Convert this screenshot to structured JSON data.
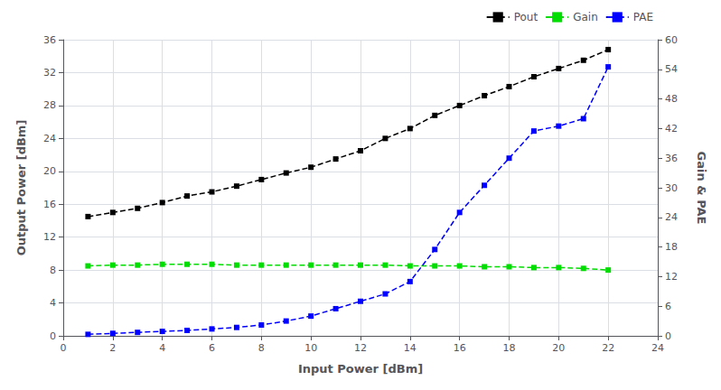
{
  "chart_data": {
    "type": "line",
    "xlabel": "Input Power [dBm]",
    "ylabel": "Output Power [dBm]",
    "y2label": "Gain & PAE",
    "x": [
      1,
      2,
      3,
      4,
      5,
      6,
      7,
      8,
      9,
      10,
      11,
      12,
      13,
      14,
      15,
      16,
      17,
      18,
      19,
      20,
      21,
      22
    ],
    "series": [
      {
        "name": "Pout",
        "color": "#000000",
        "axis": "y",
        "values": [
          14.5,
          15.0,
          15.5,
          16.2,
          17.0,
          17.5,
          18.2,
          19.0,
          19.8,
          20.5,
          21.5,
          22.5,
          24.0,
          25.2,
          26.8,
          28.0,
          29.2,
          30.3,
          31.5,
          32.5,
          33.5,
          34.8
        ]
      },
      {
        "name": "Gain",
        "color": "#00dd00",
        "axis": "y",
        "values": [
          8.5,
          8.6,
          8.6,
          8.7,
          8.7,
          8.7,
          8.6,
          8.6,
          8.6,
          8.6,
          8.6,
          8.6,
          8.6,
          8.5,
          8.5,
          8.5,
          8.4,
          8.4,
          8.3,
          8.3,
          8.2,
          8.0
        ]
      },
      {
        "name": "PAE",
        "color": "#0000ff",
        "axis": "y2",
        "values": [
          0.3,
          0.5,
          0.7,
          0.9,
          1.1,
          1.4,
          1.7,
          2.2,
          3.0,
          4.0,
          5.5,
          7.0,
          8.5,
          11.0,
          17.5,
          25.0,
          30.5,
          36.0,
          41.5,
          42.5,
          44.0,
          54.5
        ]
      }
    ],
    "xlim": [
      0,
      24
    ],
    "xticks": [
      0,
      2,
      4,
      6,
      8,
      10,
      12,
      14,
      16,
      18,
      20,
      22,
      24
    ],
    "ylim": [
      0,
      36
    ],
    "yticks": [
      0,
      4,
      8,
      12,
      16,
      20,
      24,
      28,
      32,
      36
    ],
    "y2lim": [
      0,
      60
    ],
    "y2ticks": [
      0,
      6,
      12,
      18,
      24,
      30,
      36,
      42,
      48,
      54,
      60
    ],
    "grid": true,
    "legend": "upper right",
    "marker": "square",
    "line_style": "dashed"
  }
}
